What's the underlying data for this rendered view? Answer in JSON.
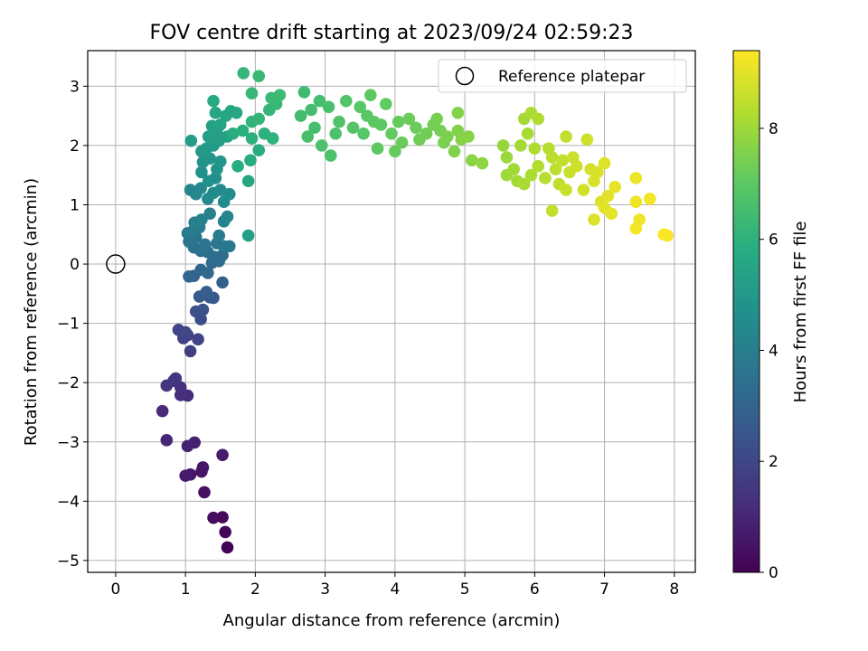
{
  "chart_data": {
    "type": "scatter",
    "title": "FOV centre drift starting at 2023/09/24 02:59:23",
    "xlabel": "Angular distance from reference (arcmin)",
    "ylabel": "Rotation from reference (arcmin)",
    "xlim": [
      -0.4,
      8.3
    ],
    "ylim": [
      -5.2,
      3.6
    ],
    "xticks": [
      0,
      1,
      2,
      3,
      4,
      5,
      6,
      7,
      8
    ],
    "yticks": [
      -5,
      -4,
      -3,
      -2,
      -1,
      0,
      1,
      2,
      3
    ],
    "grid": true,
    "colormap": "viridis",
    "colorbar": {
      "label": "Hours from first FF file",
      "range": [
        0,
        9.4
      ],
      "ticks": [
        0,
        2,
        4,
        6,
        8
      ]
    },
    "legend": {
      "position": "top-right",
      "entries": [
        "Reference platepar"
      ]
    },
    "reference_point": {
      "x": 0,
      "y": 0
    },
    "series": [
      {
        "points": [
          [
            1.6,
            -4.78,
            0.05
          ],
          [
            1.57,
            -4.52,
            0.15
          ],
          [
            1.53,
            -4.27,
            0.25
          ],
          [
            1.4,
            -4.28,
            0.3
          ],
          [
            1.27,
            -3.85,
            0.4
          ],
          [
            1.23,
            -3.5,
            0.5
          ],
          [
            1.25,
            -3.43,
            0.55
          ],
          [
            1.07,
            -3.55,
            0.6
          ],
          [
            1.0,
            -3.57,
            0.7
          ],
          [
            1.53,
            -3.22,
            0.75
          ],
          [
            1.13,
            -3.01,
            0.85
          ],
          [
            1.03,
            -3.07,
            0.9
          ],
          [
            0.73,
            -2.97,
            1.0
          ],
          [
            0.67,
            -2.48,
            1.1
          ],
          [
            1.03,
            -2.22,
            1.2
          ],
          [
            0.93,
            -2.21,
            1.25
          ],
          [
            0.93,
            -2.08,
            1.3
          ],
          [
            0.73,
            -2.05,
            1.4
          ],
          [
            0.86,
            -1.93,
            1.45
          ],
          [
            0.83,
            -1.97,
            1.5
          ],
          [
            1.07,
            -1.47,
            1.7
          ],
          [
            0.97,
            -1.25,
            1.8
          ],
          [
            1.03,
            -1.2,
            1.85
          ],
          [
            1.18,
            -1.27,
            1.9
          ],
          [
            0.9,
            -1.11,
            1.95
          ],
          [
            1.0,
            -1.15,
            2.0
          ],
          [
            1.22,
            -0.93,
            2.2
          ],
          [
            1.15,
            -0.8,
            2.3
          ],
          [
            1.25,
            -0.77,
            2.4
          ],
          [
            1.35,
            -0.56,
            2.5
          ],
          [
            1.2,
            -0.55,
            2.6
          ],
          [
            1.4,
            -0.57,
            2.7
          ],
          [
            1.3,
            -0.47,
            2.8
          ],
          [
            1.53,
            -0.31,
            2.9
          ],
          [
            1.05,
            -0.21,
            3.0
          ],
          [
            1.12,
            -0.2,
            3.05
          ],
          [
            1.22,
            -0.1,
            3.1
          ],
          [
            1.32,
            -0.15,
            3.15
          ],
          [
            1.38,
            0.02,
            3.2
          ],
          [
            1.48,
            0.05,
            3.25
          ],
          [
            1.53,
            0.15,
            3.3
          ],
          [
            1.42,
            0.12,
            3.35
          ],
          [
            1.32,
            0.2,
            3.4
          ],
          [
            1.22,
            0.22,
            3.45
          ],
          [
            1.12,
            0.28,
            3.5
          ],
          [
            1.05,
            0.38,
            3.55
          ],
          [
            1.15,
            0.45,
            3.6
          ],
          [
            1.28,
            0.33,
            3.65
          ],
          [
            1.45,
            0.35,
            3.7
          ],
          [
            1.55,
            0.3,
            3.75
          ],
          [
            1.63,
            0.3,
            3.8
          ],
          [
            1.03,
            0.52,
            3.8
          ],
          [
            1.1,
            0.55,
            3.85
          ],
          [
            1.2,
            0.62,
            3.9
          ],
          [
            1.48,
            0.48,
            3.95
          ],
          [
            1.13,
            0.7,
            4.0
          ],
          [
            1.23,
            0.75,
            4.05
          ],
          [
            1.35,
            0.85,
            4.1
          ],
          [
            1.55,
            0.72,
            4.15
          ],
          [
            1.6,
            0.8,
            4.2
          ],
          [
            1.07,
            1.25,
            4.25
          ],
          [
            1.15,
            1.18,
            4.3
          ],
          [
            1.22,
            1.28,
            4.35
          ],
          [
            1.32,
            1.1,
            4.4
          ],
          [
            1.4,
            1.2,
            4.45
          ],
          [
            1.5,
            1.25,
            4.5
          ],
          [
            1.55,
            1.05,
            4.55
          ],
          [
            1.63,
            1.18,
            4.6
          ],
          [
            1.43,
            1.45,
            4.65
          ],
          [
            1.33,
            1.4,
            4.7
          ],
          [
            1.23,
            1.55,
            4.75
          ],
          [
            1.45,
            1.6,
            4.8
          ],
          [
            1.25,
            1.72,
            4.85
          ],
          [
            1.35,
            1.78,
            4.9
          ],
          [
            1.5,
            1.73,
            4.95
          ],
          [
            1.23,
            1.9,
            5.0
          ],
          [
            1.3,
            1.95,
            5.05
          ],
          [
            1.4,
            2.0,
            5.1
          ],
          [
            1.48,
            2.08,
            5.15
          ],
          [
            1.08,
            2.08,
            5.2
          ],
          [
            1.33,
            2.15,
            5.25
          ],
          [
            1.45,
            2.22,
            5.3
          ],
          [
            1.6,
            2.15,
            5.35
          ],
          [
            1.38,
            2.33,
            5.4
          ],
          [
            1.5,
            2.35,
            5.45
          ],
          [
            1.43,
            2.55,
            5.5
          ],
          [
            1.58,
            2.5,
            5.55
          ],
          [
            1.65,
            2.58,
            5.6
          ],
          [
            1.73,
            2.55,
            5.65
          ],
          [
            1.4,
            2.75,
            5.7
          ],
          [
            1.9,
            1.4,
            5.6
          ],
          [
            1.9,
            0.48,
            5.3
          ],
          [
            1.93,
            1.75,
            5.75
          ],
          [
            2.05,
            1.92,
            5.8
          ],
          [
            1.75,
            1.65,
            5.8
          ],
          [
            1.68,
            2.2,
            5.85
          ],
          [
            1.82,
            2.25,
            5.9
          ],
          [
            1.95,
            2.12,
            5.95
          ],
          [
            2.13,
            2.2,
            6.0
          ],
          [
            2.25,
            2.12,
            6.05
          ],
          [
            1.95,
            2.4,
            6.1
          ],
          [
            2.05,
            2.45,
            6.15
          ],
          [
            2.2,
            2.6,
            6.2
          ],
          [
            2.3,
            2.7,
            6.25
          ],
          [
            2.23,
            2.8,
            6.3
          ],
          [
            2.35,
            2.85,
            6.35
          ],
          [
            1.95,
            2.88,
            6.25
          ],
          [
            1.83,
            3.22,
            6.2
          ],
          [
            2.05,
            3.17,
            6.3
          ],
          [
            2.7,
            2.9,
            6.4
          ],
          [
            2.65,
            2.5,
            6.45
          ],
          [
            2.8,
            2.6,
            6.5
          ],
          [
            2.92,
            2.75,
            6.55
          ],
          [
            3.05,
            2.65,
            6.6
          ],
          [
            2.85,
            2.3,
            6.55
          ],
          [
            2.75,
            2.15,
            6.6
          ],
          [
            2.95,
            2.0,
            6.65
          ],
          [
            3.08,
            1.83,
            6.7
          ],
          [
            3.15,
            2.2,
            6.7
          ],
          [
            3.2,
            2.4,
            6.75
          ],
          [
            3.3,
            2.75,
            6.8
          ],
          [
            3.4,
            2.3,
            6.85
          ],
          [
            3.55,
            2.2,
            6.9
          ],
          [
            3.6,
            2.5,
            6.95
          ],
          [
            3.5,
            2.65,
            6.95
          ],
          [
            3.7,
            2.4,
            7.0
          ],
          [
            3.65,
            2.85,
            7.0
          ],
          [
            3.8,
            2.35,
            7.05
          ],
          [
            3.75,
            1.95,
            7.05
          ],
          [
            3.87,
            2.7,
            7.1
          ],
          [
            3.95,
            2.2,
            7.1
          ],
          [
            4.0,
            1.9,
            7.15
          ],
          [
            4.05,
            2.4,
            7.15
          ],
          [
            4.1,
            2.05,
            7.2
          ],
          [
            4.2,
            2.45,
            7.25
          ],
          [
            4.3,
            2.3,
            7.25
          ],
          [
            4.35,
            2.1,
            7.3
          ],
          [
            4.45,
            2.2,
            7.3
          ],
          [
            4.55,
            2.35,
            7.35
          ],
          [
            4.6,
            2.45,
            7.4
          ],
          [
            4.65,
            2.25,
            7.4
          ],
          [
            4.7,
            2.05,
            7.45
          ],
          [
            4.75,
            2.15,
            7.5
          ],
          [
            4.85,
            1.9,
            7.55
          ],
          [
            4.9,
            2.25,
            7.6
          ],
          [
            4.95,
            2.1,
            7.65
          ],
          [
            5.05,
            2.15,
            7.65
          ],
          [
            5.1,
            1.75,
            7.7
          ],
          [
            4.9,
            2.55,
            7.6
          ],
          [
            5.25,
            1.7,
            7.8
          ],
          [
            5.55,
            2.0,
            7.9
          ],
          [
            5.6,
            1.8,
            7.95
          ],
          [
            5.6,
            1.5,
            8.0
          ],
          [
            5.7,
            1.6,
            8.05
          ],
          [
            5.75,
            1.4,
            8.1
          ],
          [
            5.8,
            2.0,
            8.1
          ],
          [
            5.85,
            1.35,
            8.15
          ],
          [
            5.95,
            1.5,
            8.2
          ],
          [
            5.9,
            2.2,
            8.15
          ],
          [
            5.85,
            2.45,
            8.1
          ],
          [
            5.95,
            2.55,
            8.2
          ],
          [
            6.05,
            2.45,
            8.25
          ],
          [
            6.0,
            1.95,
            8.25
          ],
          [
            6.05,
            1.65,
            8.3
          ],
          [
            6.15,
            1.45,
            8.35
          ],
          [
            6.2,
            1.95,
            8.35
          ],
          [
            6.25,
            1.8,
            8.4
          ],
          [
            6.3,
            1.6,
            8.45
          ],
          [
            6.35,
            1.35,
            8.5
          ],
          [
            6.4,
            1.75,
            8.55
          ],
          [
            6.45,
            1.25,
            8.6
          ],
          [
            6.5,
            1.55,
            8.6
          ],
          [
            6.55,
            1.8,
            8.65
          ],
          [
            6.6,
            1.65,
            8.7
          ],
          [
            6.45,
            2.15,
            8.55
          ],
          [
            6.25,
            0.9,
            8.55
          ],
          [
            6.7,
            1.25,
            8.75
          ],
          [
            6.75,
            2.1,
            8.7
          ],
          [
            6.8,
            1.6,
            8.8
          ],
          [
            6.85,
            1.4,
            8.85
          ],
          [
            6.9,
            1.55,
            8.85
          ],
          [
            6.85,
            0.75,
            8.9
          ],
          [
            6.95,
            1.05,
            8.9
          ],
          [
            7.0,
            1.7,
            8.95
          ],
          [
            7.0,
            0.95,
            9.0
          ],
          [
            7.05,
            1.15,
            9.0
          ],
          [
            7.1,
            0.85,
            9.05
          ],
          [
            7.15,
            1.3,
            9.05
          ],
          [
            7.45,
            1.45,
            9.15
          ],
          [
            7.45,
            1.05,
            9.2
          ],
          [
            7.5,
            0.75,
            9.2
          ],
          [
            7.45,
            0.6,
            9.25
          ],
          [
            7.65,
            1.1,
            9.25
          ],
          [
            7.85,
            0.5,
            9.35
          ],
          [
            7.9,
            0.48,
            9.35
          ]
        ]
      }
    ]
  }
}
